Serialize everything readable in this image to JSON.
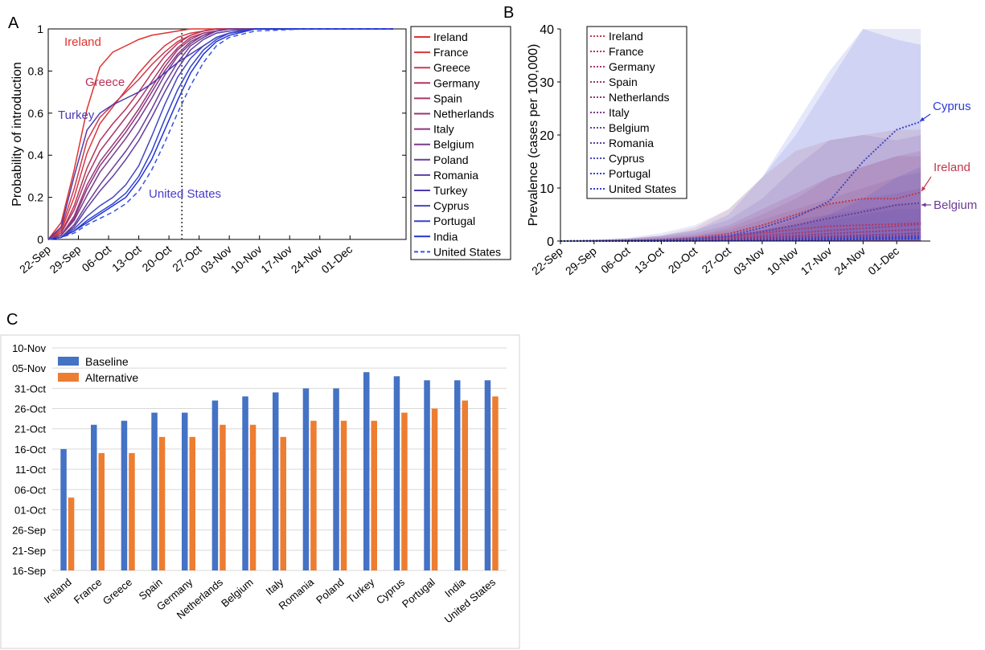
{
  "panels": {
    "a": "A",
    "b": "B",
    "c": "C"
  },
  "chart_data": [
    {
      "type": "line",
      "panel": "A",
      "ylabel": "Probability of introduction",
      "xlabel": "",
      "ylim": [
        0,
        1
      ],
      "x_ticks": [
        "22-Sep",
        "29-Sep",
        "06-Oct",
        "13-Oct",
        "20-Oct",
        "27-Oct",
        "03-Nov",
        "10-Nov",
        "17-Nov",
        "24-Nov",
        "01-Dec"
      ],
      "y_ticks": [
        "0",
        "0.2",
        "0.4",
        "0.6",
        "0.8",
        "1"
      ],
      "x": [
        0,
        3,
        6,
        9,
        12,
        15,
        18,
        21,
        24,
        27,
        30,
        33,
        36,
        39,
        42,
        48,
        60,
        80
      ],
      "vline_x": 31,
      "legend_position": "right-outside",
      "series": [
        {
          "name": "Ireland",
          "color": "#e0322e",
          "dashed": false,
          "values": [
            0,
            0.08,
            0.33,
            0.62,
            0.82,
            0.89,
            0.92,
            0.95,
            0.97,
            0.98,
            0.99,
            1,
            1,
            1,
            1,
            1,
            1,
            1
          ]
        },
        {
          "name": "France",
          "color": "#d9363c",
          "dashed": false,
          "values": [
            0,
            0.04,
            0.2,
            0.41,
            0.55,
            0.63,
            0.71,
            0.79,
            0.86,
            0.92,
            0.96,
            0.98,
            0.99,
            1,
            1,
            1,
            1,
            1
          ]
        },
        {
          "name": "Greece",
          "color": "#cc3a4e",
          "dashed": false,
          "values": [
            0,
            0.05,
            0.24,
            0.47,
            0.58,
            0.64,
            0.7,
            0.76,
            0.83,
            0.89,
            0.94,
            0.97,
            0.99,
            1,
            1,
            1,
            1,
            1
          ]
        },
        {
          "name": "Germany",
          "color": "#b8335a",
          "dashed": false,
          "values": [
            0,
            0.03,
            0.16,
            0.34,
            0.47,
            0.55,
            0.62,
            0.7,
            0.79,
            0.87,
            0.93,
            0.97,
            0.99,
            1,
            1,
            1,
            1,
            1
          ]
        },
        {
          "name": "Spain",
          "color": "#a8366a",
          "dashed": false,
          "values": [
            0,
            0.03,
            0.14,
            0.3,
            0.42,
            0.5,
            0.58,
            0.66,
            0.75,
            0.84,
            0.91,
            0.96,
            0.98,
            0.99,
            1,
            1,
            1,
            1
          ]
        },
        {
          "name": "Netherlands",
          "color": "#983674",
          "dashed": false,
          "values": [
            0,
            0.02,
            0.11,
            0.26,
            0.37,
            0.45,
            0.53,
            0.62,
            0.72,
            0.82,
            0.9,
            0.95,
            0.98,
            0.99,
            1,
            1,
            1,
            1
          ]
        },
        {
          "name": "Italy",
          "color": "#8a3580",
          "dashed": false,
          "values": [
            0,
            0.02,
            0.1,
            0.24,
            0.35,
            0.43,
            0.51,
            0.6,
            0.7,
            0.8,
            0.88,
            0.94,
            0.97,
            0.99,
            1,
            1,
            1,
            1
          ]
        },
        {
          "name": "Belgium",
          "color": "#7a3a8c",
          "dashed": false,
          "values": [
            0,
            0.02,
            0.09,
            0.21,
            0.32,
            0.4,
            0.48,
            0.57,
            0.67,
            0.78,
            0.87,
            0.93,
            0.97,
            0.99,
            1,
            1,
            1,
            1
          ]
        },
        {
          "name": "Poland",
          "color": "#6b3c96",
          "dashed": false,
          "values": [
            0,
            0.01,
            0.07,
            0.17,
            0.26,
            0.34,
            0.42,
            0.51,
            0.62,
            0.74,
            0.84,
            0.92,
            0.96,
            0.99,
            1,
            1,
            1,
            1
          ]
        },
        {
          "name": "Romania",
          "color": "#5e3ea2",
          "dashed": false,
          "values": [
            0,
            0.01,
            0.06,
            0.15,
            0.23,
            0.3,
            0.38,
            0.47,
            0.58,
            0.7,
            0.81,
            0.9,
            0.95,
            0.98,
            0.99,
            1,
            1,
            1
          ]
        },
        {
          "name": "Turkey",
          "color": "#4b3cb0",
          "dashed": false,
          "values": [
            0,
            0.06,
            0.3,
            0.52,
            0.6,
            0.64,
            0.67,
            0.7,
            0.74,
            0.79,
            0.84,
            0.88,
            0.92,
            0.96,
            0.98,
            1,
            1,
            1
          ]
        },
        {
          "name": "Cyprus",
          "color": "#4048bf",
          "dashed": false,
          "values": [
            0,
            0.01,
            0.05,
            0.11,
            0.16,
            0.2,
            0.26,
            0.35,
            0.49,
            0.64,
            0.77,
            0.86,
            0.92,
            0.96,
            0.98,
            1,
            1,
            1
          ]
        },
        {
          "name": "Portugal",
          "color": "#3044cc",
          "dashed": false,
          "values": [
            0,
            0.01,
            0.04,
            0.09,
            0.13,
            0.17,
            0.22,
            0.3,
            0.42,
            0.57,
            0.71,
            0.82,
            0.9,
            0.95,
            0.98,
            1,
            1,
            1
          ]
        },
        {
          "name": "India",
          "color": "#1f33d6",
          "dashed": false,
          "values": [
            0,
            0.01,
            0.04,
            0.08,
            0.12,
            0.16,
            0.2,
            0.28,
            0.38,
            0.52,
            0.66,
            0.79,
            0.88,
            0.94,
            0.97,
            1,
            1,
            1
          ]
        },
        {
          "name": "United States",
          "color": "#3a52e0",
          "dashed": true,
          "values": [
            0,
            0.01,
            0.03,
            0.07,
            0.1,
            0.13,
            0.17,
            0.23,
            0.33,
            0.46,
            0.6,
            0.73,
            0.84,
            0.92,
            0.96,
            0.99,
            1,
            1
          ]
        }
      ],
      "annotations": [
        {
          "text": "Ireland",
          "color": "#e0322e"
        },
        {
          "text": "Greece",
          "color": "#b8335a"
        },
        {
          "text": "Turkey",
          "color": "#4b3cb0"
        },
        {
          "text": "United States",
          "color": "#4a3cc8"
        }
      ]
    },
    {
      "type": "line",
      "panel": "B",
      "ylabel": "Prevalence (cases per 100,000)",
      "xlabel": "",
      "ylim": [
        0,
        40
      ],
      "x_ticks": [
        "22-Sep",
        "29-Sep",
        "06-Oct",
        "13-Oct",
        "20-Oct",
        "27-Oct",
        "03-Nov",
        "10-Nov",
        "17-Nov",
        "24-Nov",
        "01-Dec"
      ],
      "y_ticks": [
        "0",
        "10",
        "20",
        "30",
        "40"
      ],
      "x": [
        0,
        7,
        14,
        21,
        28,
        35,
        42,
        49,
        56,
        63,
        70,
        75
      ],
      "legend_position": "top-left",
      "series": [
        {
          "name": "Ireland",
          "color": "#c4384a",
          "values": [
            0,
            0.05,
            0.1,
            0.2,
            0.6,
            1.4,
            3.0,
            5.0,
            7.0,
            8.0,
            8.0,
            9.2
          ],
          "band_upper": [
            0,
            0.2,
            0.4,
            1.0,
            2.5,
            6,
            12,
            17,
            19,
            20,
            21,
            21
          ]
        },
        {
          "name": "France",
          "color": "#b8335a",
          "values": [
            0,
            0.03,
            0.08,
            0.15,
            0.4,
            0.8,
            1.5,
            2.2,
            2.8,
            3.0,
            3.2,
            3.4
          ],
          "band_upper": [
            0,
            0.2,
            0.4,
            0.8,
            1.5,
            3,
            6,
            9,
            12,
            14,
            16,
            17
          ]
        },
        {
          "name": "Germany",
          "color": "#a8366a",
          "values": [
            0,
            0.02,
            0.05,
            0.1,
            0.3,
            0.6,
            1.0,
            1.5,
            2.0,
            2.4,
            2.8,
            3.2
          ],
          "band_upper": [
            0,
            0.1,
            0.3,
            0.6,
            1,
            2.5,
            5,
            8,
            12,
            14,
            16,
            16
          ]
        },
        {
          "name": "Spain",
          "color": "#983674",
          "values": [
            0,
            0.02,
            0.04,
            0.08,
            0.2,
            0.4,
            0.7,
            1.0,
            1.4,
            1.7,
            2.0,
            2.2
          ],
          "band_upper": [
            0,
            0.1,
            0.2,
            0.5,
            1,
            2,
            4,
            6,
            8,
            10,
            12,
            13
          ]
        },
        {
          "name": "Netherlands",
          "color": "#8a3580",
          "values": [
            0,
            0.01,
            0.03,
            0.06,
            0.15,
            0.3,
            0.5,
            0.7,
            0.9,
            1.1,
            1.3,
            1.5
          ],
          "band_upper": [
            0,
            0.1,
            0.2,
            0.4,
            0.8,
            1.5,
            3,
            5,
            7,
            8,
            9,
            10
          ]
        },
        {
          "name": "Italy",
          "color": "#7a3a8c",
          "values": [
            0,
            0.01,
            0.02,
            0.05,
            0.1,
            0.2,
            0.3,
            0.5,
            0.7,
            0.8,
            0.9,
            1.0
          ],
          "band_upper": [
            0,
            0.1,
            0.2,
            0.3,
            0.6,
            1,
            2,
            4,
            5,
            6,
            7,
            7
          ]
        },
        {
          "name": "Belgium",
          "color": "#6b3c96",
          "values": [
            0,
            0.05,
            0.1,
            0.2,
            0.4,
            0.9,
            1.8,
            3.0,
            4.3,
            5.5,
            6.8,
            7.2
          ],
          "band_upper": [
            0,
            0.2,
            0.5,
            1,
            2,
            4,
            8,
            14,
            19,
            20,
            19,
            20
          ]
        },
        {
          "name": "Romania",
          "color": "#5e3ea2",
          "values": [
            0,
            0.01,
            0.02,
            0.04,
            0.08,
            0.15,
            0.25,
            0.4,
            0.55,
            0.7,
            0.85,
            1.0
          ],
          "band_upper": [
            0,
            0.1,
            0.2,
            0.3,
            0.6,
            1,
            2,
            3,
            4,
            5,
            6,
            6
          ]
        },
        {
          "name": "Cyprus",
          "color": "#4048bf",
          "values": [
            0,
            0.05,
            0.1,
            0.2,
            0.4,
            1.0,
            2.5,
            4.5,
            7.5,
            15,
            21,
            22.5
          ],
          "band_upper": [
            0,
            0.3,
            0.6,
            1.5,
            3,
            6,
            12,
            20,
            30,
            40,
            40,
            40
          ]
        },
        {
          "name": "Portugal",
          "color": "#3044cc",
          "values": [
            0,
            0.01,
            0.02,
            0.03,
            0.06,
            0.1,
            0.2,
            0.3,
            0.4,
            0.5,
            0.6,
            0.7
          ],
          "band_upper": [
            0,
            0.1,
            0.2,
            0.3,
            0.5,
            1,
            2,
            3,
            5,
            8,
            12,
            14
          ]
        },
        {
          "name": "United States",
          "color": "#2a3ad8",
          "values": [
            0,
            0.01,
            0.02,
            0.03,
            0.05,
            0.08,
            0.12,
            0.18,
            0.25,
            0.32,
            0.4,
            0.45
          ],
          "band_upper": [
            0,
            0.2,
            0.5,
            1,
            2,
            5,
            12,
            22,
            32,
            40,
            38,
            37
          ]
        }
      ],
      "annotations": [
        {
          "text": "Cyprus",
          "color": "#2a3ad8"
        },
        {
          "text": "Ireland",
          "color": "#c4384a"
        },
        {
          "text": "Belgium",
          "color": "#6b3c96"
        }
      ]
    },
    {
      "type": "bar",
      "panel": "C",
      "xlabel": "",
      "ylabel": "",
      "y_ticks": [
        "10-Nov",
        "05-Nov",
        "31-Oct",
        "26-Oct",
        "21-Oct",
        "16-Oct",
        "11-Oct",
        "06-Oct",
        "01-Oct",
        "26-Sep",
        "21-Sep",
        "16-Sep"
      ],
      "ylim": [
        0,
        55
      ],
      "y_unit": "days after 16-Sep",
      "categories": [
        "Ireland",
        "France",
        "Greece",
        "Spain",
        "Germany",
        "Netherlands",
        "Belgium",
        "Italy",
        "Romania",
        "Poland",
        "Turkey",
        "Cyprus",
        "Portugal",
        "India",
        "United States"
      ],
      "legend_position": "top-left",
      "series": [
        {
          "name": "Baseline",
          "color": "#4472c4",
          "values": [
            30,
            36,
            37,
            39,
            39,
            42,
            43,
            44,
            45,
            45,
            49,
            48,
            47,
            47,
            47
          ]
        },
        {
          "name": "Alternative",
          "color": "#ed7d31",
          "values": [
            18,
            29,
            29,
            33,
            33,
            36,
            36,
            33,
            37,
            37,
            37,
            39,
            40,
            42,
            43
          ]
        }
      ]
    }
  ]
}
